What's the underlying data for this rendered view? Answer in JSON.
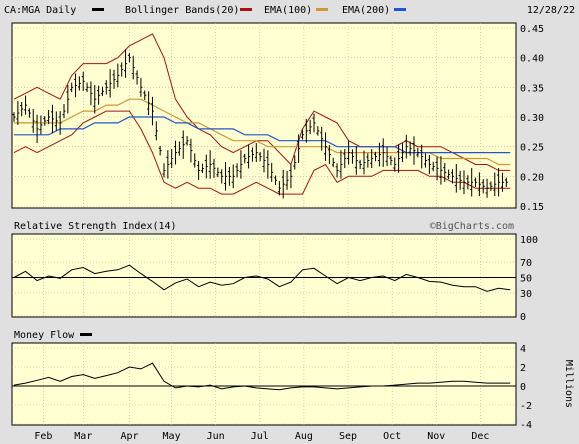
{
  "header": {
    "symbol": "CA:MGA Daily",
    "indicators": [
      {
        "label": "Bollinger Bands(20)",
        "color": "#aa1111"
      },
      {
        "label": "EMA(100)",
        "color": "#cc9933"
      },
      {
        "label": "EMA(200)",
        "color": "#2255cc"
      }
    ],
    "date": "12/28/22"
  },
  "watermark": "©BigCharts.com",
  "chart_data": [
    {
      "type": "ohlc",
      "ylim": [
        0.15,
        0.45
      ],
      "yticks": [
        "0.45",
        "0.40",
        "0.35",
        "0.30",
        "0.25",
        "0.20",
        "0.15"
      ],
      "x": [
        0,
        6,
        12,
        18,
        24,
        30,
        36,
        42,
        48,
        54,
        60,
        66,
        72,
        78,
        84,
        90,
        96,
        102,
        108,
        114,
        120,
        126,
        132,
        138,
        144,
        150,
        156,
        162,
        168,
        174,
        180,
        186,
        192,
        198,
        204,
        210,
        216,
        222,
        228,
        234,
        240,
        246,
        252,
        258
      ],
      "close": [
        0.3,
        0.32,
        0.28,
        0.3,
        0.29,
        0.35,
        0.36,
        0.33,
        0.35,
        0.37,
        0.4,
        0.35,
        0.31,
        0.21,
        0.24,
        0.26,
        0.21,
        0.22,
        0.2,
        0.2,
        0.23,
        0.24,
        0.22,
        0.18,
        0.2,
        0.27,
        0.29,
        0.25,
        0.21,
        0.24,
        0.22,
        0.23,
        0.24,
        0.22,
        0.25,
        0.24,
        0.22,
        0.21,
        0.2,
        0.19,
        0.19,
        0.18,
        0.19,
        0.19
      ],
      "ema100": [
        0.29,
        0.29,
        0.29,
        0.29,
        0.29,
        0.3,
        0.31,
        0.31,
        0.32,
        0.32,
        0.33,
        0.33,
        0.32,
        0.31,
        0.3,
        0.29,
        0.29,
        0.28,
        0.27,
        0.26,
        0.26,
        0.26,
        0.25,
        0.25,
        0.25,
        0.25,
        0.25,
        0.25,
        0.24,
        0.24,
        0.24,
        0.24,
        0.24,
        0.24,
        0.24,
        0.24,
        0.24,
        0.23,
        0.23,
        0.23,
        0.23,
        0.23,
        0.22,
        0.22
      ],
      "ema200": [
        0.27,
        0.27,
        0.27,
        0.27,
        0.28,
        0.28,
        0.28,
        0.29,
        0.29,
        0.29,
        0.3,
        0.3,
        0.3,
        0.3,
        0.29,
        0.29,
        0.28,
        0.28,
        0.28,
        0.28,
        0.27,
        0.27,
        0.27,
        0.26,
        0.26,
        0.26,
        0.26,
        0.26,
        0.25,
        0.25,
        0.25,
        0.25,
        0.25,
        0.25,
        0.24,
        0.24,
        0.24,
        0.24,
        0.24,
        0.24,
        0.24,
        0.24,
        0.24,
        0.24
      ],
      "bb_upper": [
        0.33,
        0.34,
        0.35,
        0.34,
        0.33,
        0.37,
        0.39,
        0.39,
        0.39,
        0.4,
        0.42,
        0.43,
        0.44,
        0.4,
        0.33,
        0.3,
        0.28,
        0.27,
        0.25,
        0.24,
        0.25,
        0.26,
        0.26,
        0.24,
        0.22,
        0.28,
        0.31,
        0.3,
        0.29,
        0.26,
        0.25,
        0.25,
        0.25,
        0.25,
        0.26,
        0.25,
        0.25,
        0.25,
        0.24,
        0.23,
        0.22,
        0.22,
        0.21,
        0.21
      ],
      "bb_lower": [
        0.24,
        0.25,
        0.24,
        0.25,
        0.26,
        0.27,
        0.29,
        0.3,
        0.31,
        0.31,
        0.31,
        0.28,
        0.24,
        0.19,
        0.18,
        0.19,
        0.18,
        0.18,
        0.17,
        0.17,
        0.18,
        0.19,
        0.18,
        0.17,
        0.17,
        0.17,
        0.21,
        0.22,
        0.19,
        0.2,
        0.2,
        0.2,
        0.21,
        0.21,
        0.21,
        0.21,
        0.2,
        0.2,
        0.19,
        0.19,
        0.18,
        0.18,
        0.18,
        0.18
      ]
    },
    {
      "type": "line",
      "title": "Relative Strength Index(14)",
      "ylim": [
        0,
        100
      ],
      "yticks": [
        "100",
        "70",
        "50",
        "30",
        "0"
      ],
      "reference_line": 50,
      "x": [
        0,
        6,
        12,
        18,
        24,
        30,
        36,
        42,
        48,
        54,
        60,
        66,
        72,
        78,
        84,
        90,
        96,
        102,
        108,
        114,
        120,
        126,
        132,
        138,
        144,
        150,
        156,
        162,
        168,
        174,
        180,
        186,
        192,
        198,
        204,
        210,
        216,
        222,
        228,
        234,
        240,
        246,
        252,
        258
      ],
      "values": [
        50,
        58,
        46,
        52,
        49,
        60,
        63,
        55,
        58,
        60,
        66,
        55,
        45,
        34,
        43,
        48,
        38,
        44,
        40,
        42,
        50,
        52,
        48,
        38,
        44,
        60,
        62,
        52,
        42,
        50,
        46,
        50,
        52,
        46,
        54,
        50,
        45,
        44,
        40,
        38,
        38,
        32,
        36,
        34
      ]
    },
    {
      "type": "line",
      "title": "Money Flow",
      "ylim": [
        -4,
        4
      ],
      "yticks": [
        "4",
        "2",
        "0",
        "-2",
        "-4"
      ],
      "ylabel": "Millions",
      "reference_line": 0,
      "x": [
        0,
        6,
        12,
        18,
        24,
        30,
        36,
        42,
        48,
        54,
        60,
        66,
        72,
        78,
        84,
        90,
        96,
        102,
        108,
        114,
        120,
        126,
        132,
        138,
        144,
        150,
        156,
        162,
        168,
        174,
        180,
        186,
        192,
        198,
        204,
        210,
        216,
        222,
        228,
        234,
        240,
        246,
        252,
        258
      ],
      "values": [
        0.1,
        0.3,
        0.6,
        0.9,
        0.5,
        1.0,
        1.2,
        0.8,
        1.1,
        1.4,
        2.0,
        1.8,
        2.4,
        0.5,
        -0.2,
        0.0,
        -0.1,
        0.1,
        -0.3,
        -0.1,
        0.0,
        -0.2,
        -0.3,
        -0.4,
        -0.2,
        -0.1,
        -0.1,
        -0.2,
        -0.3,
        -0.2,
        -0.1,
        0.0,
        0.0,
        0.1,
        0.2,
        0.3,
        0.3,
        0.4,
        0.5,
        0.5,
        0.4,
        0.3,
        0.3,
        0.3
      ]
    }
  ],
  "x_axis": {
    "labels": [
      {
        "label": "Feb",
        "x": 14
      },
      {
        "label": "Mar",
        "x": 33
      },
      {
        "label": "Apr",
        "x": 55
      },
      {
        "label": "May",
        "x": 75
      },
      {
        "label": "Jun",
        "x": 96
      },
      {
        "label": "Jul",
        "x": 117
      },
      {
        "label": "Aug",
        "x": 138
      },
      {
        "label": "Sep",
        "x": 159
      },
      {
        "label": "Oct",
        "x": 180
      },
      {
        "label": "Nov",
        "x": 201
      },
      {
        "label": "Dec",
        "x": 222
      }
    ]
  }
}
